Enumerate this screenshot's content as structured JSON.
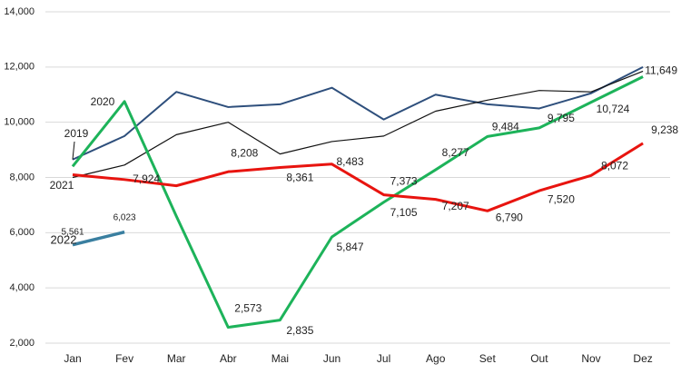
{
  "chart_data": {
    "type": "line",
    "categories": [
      "Jan",
      "Fev",
      "Mar",
      "Abr",
      "Mai",
      "Jun",
      "Jul",
      "Ago",
      "Set",
      "Out",
      "Nov",
      "Dez"
    ],
    "ylim": [
      2000,
      14000
    ],
    "yticks": [
      {
        "value": 2000,
        "label": "2,000"
      },
      {
        "value": 4000,
        "label": "4,000"
      },
      {
        "value": 6000,
        "label": "6,000"
      },
      {
        "value": 8000,
        "label": "8,000"
      },
      {
        "value": 10000,
        "label": "10,000"
      },
      {
        "value": 12000,
        "label": "12,000"
      },
      {
        "value": 14000,
        "label": "14,000"
      }
    ],
    "grid": true,
    "series": [
      {
        "name": "2019",
        "color": "#2e4f7c",
        "values": [
          8650,
          9500,
          11100,
          10550,
          10650,
          11250,
          10100,
          11000,
          10650,
          10500,
          11050,
          12000
        ]
      },
      {
        "color": "#111111",
        "values": [
          8000,
          8450,
          9550,
          10000,
          8850,
          9300,
          9500,
          10400,
          10800,
          11150,
          11100,
          11850
        ]
      },
      {
        "name": "2020",
        "color": "#1db35a",
        "values": [
          8400,
          10750,
          6600,
          2573,
          2835,
          5847,
          7105,
          8277,
          9484,
          9795,
          10724,
          11649
        ],
        "value_labels": [
          null,
          null,
          null,
          "2,573",
          "2,835",
          "5,847",
          "7,105",
          "8,277",
          "9,484",
          "9,795",
          "10,724",
          "11,649"
        ]
      },
      {
        "name": "2021",
        "color": "#e8140f",
        "values": [
          8100,
          7924,
          7700,
          8208,
          8361,
          8483,
          7373,
          7207,
          6790,
          7520,
          8072,
          9238
        ],
        "value_labels": [
          null,
          "7,924",
          null,
          "8,208",
          "8,361",
          "8,483",
          "7,373",
          "7,207",
          "6,790",
          "7,520",
          "8,072",
          "9,238"
        ]
      },
      {
        "name": "2022",
        "color": "#3a7fa0",
        "values": [
          5561,
          6023,
          null,
          null,
          null,
          null,
          null,
          null,
          null,
          null,
          null,
          null
        ],
        "value_labels": [
          "5,561",
          "6,023",
          null,
          null,
          null,
          null,
          null,
          null,
          null,
          null,
          null,
          null
        ]
      }
    ]
  }
}
